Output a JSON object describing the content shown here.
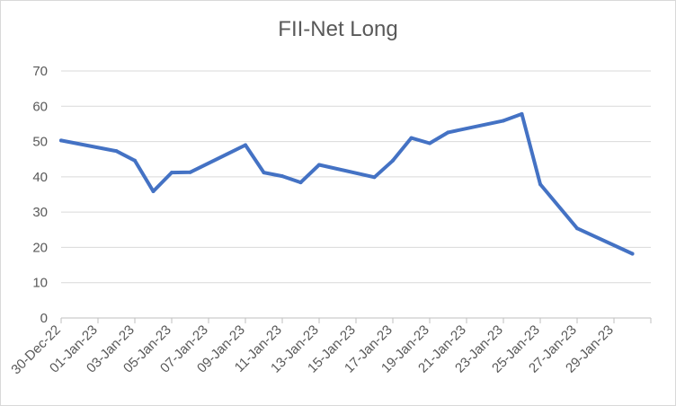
{
  "chart_data": {
    "type": "line",
    "title": "FII-Net Long",
    "xlabel": "",
    "ylabel": "",
    "ylim": [
      0,
      70
    ],
    "yticks": [
      0,
      10,
      20,
      30,
      40,
      50,
      60,
      70
    ],
    "xlim": [
      "2022-12-30",
      "2023-01-30"
    ],
    "xtick_labels": [
      "30-Dec-22",
      "01-Jan-23",
      "03-Jan-23",
      "05-Jan-23",
      "07-Jan-23",
      "09-Jan-23",
      "11-Jan-23",
      "13-Jan-23",
      "15-Jan-23",
      "17-Jan-23",
      "19-Jan-23",
      "21-Jan-23",
      "23-Jan-23",
      "25-Jan-23",
      "27-Jan-23",
      "29-Jan-23"
    ],
    "gridlines": true,
    "legend": false,
    "series": [
      {
        "color": "#4472C4",
        "points": [
          {
            "x": "2022-12-30",
            "y": 50.3
          },
          {
            "x": "2023-01-02",
            "y": 47.3
          },
          {
            "x": "2023-01-03",
            "y": 44.6
          },
          {
            "x": "2023-01-04",
            "y": 35.9
          },
          {
            "x": "2023-01-05",
            "y": 41.2
          },
          {
            "x": "2023-01-06",
            "y": 41.3
          },
          {
            "x": "2023-01-09",
            "y": 49.0
          },
          {
            "x": "2023-01-10",
            "y": 41.2
          },
          {
            "x": "2023-01-11",
            "y": 40.2
          },
          {
            "x": "2023-01-12",
            "y": 38.4
          },
          {
            "x": "2023-01-13",
            "y": 43.4
          },
          {
            "x": "2023-01-16",
            "y": 39.9
          },
          {
            "x": "2023-01-17",
            "y": 44.6
          },
          {
            "x": "2023-01-18",
            "y": 51.0
          },
          {
            "x": "2023-01-19",
            "y": 49.5
          },
          {
            "x": "2023-01-20",
            "y": 52.6
          },
          {
            "x": "2023-01-23",
            "y": 55.9
          },
          {
            "x": "2023-01-24",
            "y": 57.8
          },
          {
            "x": "2023-01-25",
            "y": 37.9
          },
          {
            "x": "2023-01-27",
            "y": 25.4
          },
          {
            "x": "2023-01-30",
            "y": 18.2
          }
        ]
      }
    ]
  }
}
